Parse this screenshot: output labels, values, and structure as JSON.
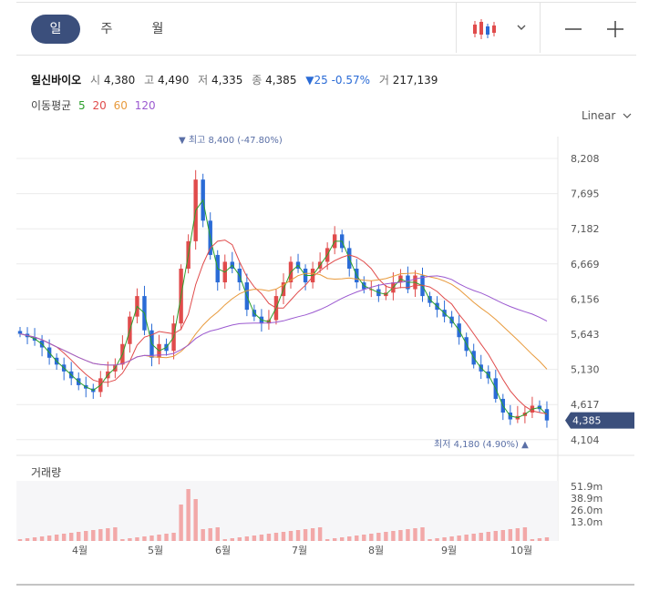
{
  "tabs": [
    {
      "label": "일",
      "active": true
    },
    {
      "label": "주",
      "active": false
    },
    {
      "label": "월",
      "active": false
    }
  ],
  "toolbar": {
    "chart_type_icon": "candlestick-icon",
    "dropdown_icon": "chevron-down-icon",
    "zoom_out_icon": "minus-icon",
    "zoom_in_icon": "plus-icon"
  },
  "quote": {
    "name": "일신바이오",
    "open_label": "시",
    "open": "4,380",
    "high_label": "고",
    "high": "4,490",
    "low_label": "저",
    "low": "4,335",
    "close_label": "종",
    "close": "4,385",
    "change": "▼25 -0.57%",
    "volume_label": "거",
    "volume": "217,139"
  },
  "ma": {
    "label": "이동평균",
    "periods": [
      "5",
      "20",
      "60",
      "120"
    ],
    "colors": [
      "#2ca02c",
      "#e04b4b",
      "#e89a3c",
      "#9b59d0"
    ]
  },
  "scale_select": {
    "value": "Linear"
  },
  "colors": {
    "up": "#e04b4b",
    "down": "#2a6bd6",
    "accent": "#3b4f7c",
    "grid": "#ececec",
    "volume": "#f2a8a8",
    "volume_bg": "#f6f6f8",
    "annotation": "#5a6fa6"
  },
  "price_axis": {
    "ticks": [
      "8,208",
      "7,695",
      "7,182",
      "6,669",
      "6,156",
      "5,643",
      "5,130",
      "4,617",
      "4,104"
    ],
    "min": 3900,
    "max": 8400
  },
  "current_price": "4,385",
  "max_annotation": "▼ 최고 8,400 (-47.80%)",
  "min_annotation": "최저 4,180 (4.90%) ▲",
  "volume": {
    "title": "거래량",
    "ticks": [
      "51.9m",
      "38.9m",
      "26.0m",
      "13.0m"
    ]
  },
  "x_axis": {
    "labels": [
      "4월",
      "5월",
      "6월",
      "7월",
      "8월",
      "9월",
      "10월"
    ]
  },
  "chart_data": {
    "type": "candlestick",
    "title": "일신바이오",
    "interval": "daily",
    "y_scale": "linear",
    "ylim": [
      4104,
      8400
    ],
    "months": [
      "4월",
      "5월",
      "6월",
      "7월",
      "8월",
      "9월",
      "10월"
    ],
    "approx_close_series": [
      5650,
      5600,
      5550,
      5450,
      5300,
      5200,
      5100,
      5000,
      4900,
      4850,
      4800,
      5000,
      5100,
      5200,
      5500,
      5900,
      6200,
      5700,
      5300,
      5500,
      5400,
      5800,
      6600,
      7000,
      7900,
      7300,
      6800,
      6400,
      6700,
      6600,
      6400,
      6000,
      5900,
      5800,
      5850,
      6200,
      6400,
      6700,
      6600,
      6400,
      6600,
      6700,
      6900,
      7100,
      6900,
      6600,
      6400,
      6300,
      6300,
      6200,
      6250,
      6400,
      6500,
      6300,
      6500,
      6200,
      6100,
      6000,
      5900,
      5800,
      5600,
      5400,
      5200,
      5100,
      5000,
      4700,
      4500,
      4400,
      4450,
      4500,
      4600,
      4550,
      4385
    ],
    "series": [
      {
        "name": "5",
        "type": "moving_average"
      },
      {
        "name": "20",
        "type": "moving_average"
      },
      {
        "name": "60",
        "type": "moving_average"
      },
      {
        "name": "120",
        "type": "moving_average"
      }
    ],
    "current": 4385,
    "period_high": 8400,
    "period_low": 4180
  }
}
